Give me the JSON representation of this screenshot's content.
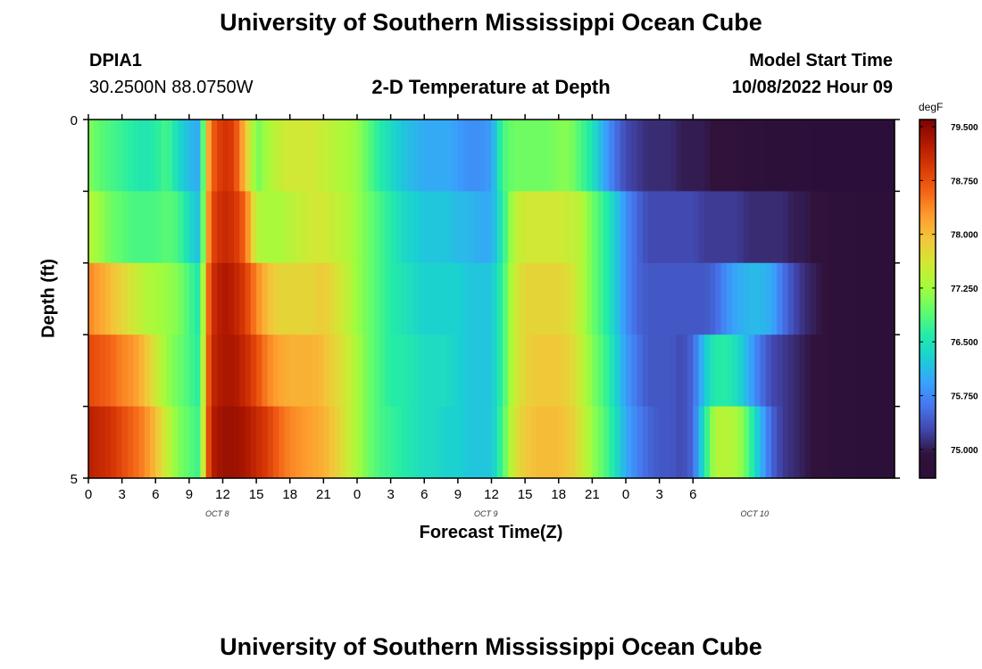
{
  "header": {
    "title": "University of Southern Mississippi Ocean Cube",
    "station_id": "DPIA1",
    "coordinates": "30.2500N  88.0750W",
    "plot_title": "2-D Temperature at Depth",
    "model_start_label": "Model Start Time",
    "model_start_value": "10/08/2022 Hour 09"
  },
  "footer": {
    "title": "University of Southern Mississippi Ocean Cube"
  },
  "chart_data": {
    "type": "heatmap",
    "title": "2-D Temperature at Depth",
    "xlabel": "Forecast Time(Z)",
    "ylabel": "Depth (ft)",
    "x_hours": [
      0,
      72
    ],
    "x_tick_step_hours": 3,
    "x_tick_labels": [
      "0",
      "3",
      "6",
      "9",
      "12",
      "15",
      "18",
      "21",
      "0",
      "3",
      "6",
      "9",
      "12",
      "15",
      "18",
      "21",
      "0",
      "3",
      "6"
    ],
    "date_labels": [
      {
        "label": "OCT 8",
        "hour": 11.5
      },
      {
        "label": "OCT 9",
        "hour": 35.5
      },
      {
        "label": "OCT 10",
        "hour": 59.5
      }
    ],
    "y_range": [
      0,
      5
    ],
    "y_tick_labels": [
      "0",
      "5"
    ],
    "depth_rows": 5,
    "colorbar": {
      "unit": "degF",
      "min": 74.6,
      "max": 79.6,
      "ticks": [
        "79.500",
        "78.750",
        "78.000",
        "77.250",
        "76.500",
        "75.750",
        "75.000"
      ],
      "tick_values": [
        79.5,
        78.75,
        78.0,
        77.25,
        76.5,
        75.75,
        75.0
      ]
    },
    "colors": {
      "stops": [
        "#2b0f3a",
        "#30123b",
        "#4145ab",
        "#4675ed",
        "#39a2fc",
        "#1bcfd4",
        "#24eca6",
        "#61fc6c",
        "#a4fc3b",
        "#d1e834",
        "#f3c63a",
        "#fe9b2d",
        "#f36315",
        "#d93806",
        "#b11901",
        "#7a0403"
      ]
    },
    "key_times": [
      0,
      1,
      2,
      3,
      4,
      5,
      6,
      7,
      8,
      9,
      10,
      10.5,
      11,
      12,
      13,
      14,
      15,
      16,
      17,
      18,
      19,
      20,
      21,
      22,
      23,
      24,
      25,
      26,
      27,
      28,
      29,
      30,
      31,
      32,
      33,
      34,
      35,
      36,
      37,
      38,
      39,
      40,
      41,
      42,
      43,
      44,
      45,
      46,
      47,
      48,
      49,
      50,
      51,
      52,
      53,
      54,
      55,
      56,
      57,
      58,
      59,
      60,
      61,
      62,
      63,
      64,
      65,
      66,
      67,
      68,
      69,
      70,
      71,
      72
    ],
    "series": [
      {
        "name": "row1",
        "values": [
          77.1,
          76.9,
          76.8,
          76.7,
          76.6,
          76.5,
          76.6,
          76.8,
          76.4,
          76.1,
          76.0,
          77.8,
          78.6,
          79.0,
          78.9,
          78.0,
          77.0,
          77.3,
          77.5,
          77.6,
          77.6,
          77.6,
          77.5,
          77.4,
          77.3,
          77.2,
          76.9,
          76.6,
          76.4,
          76.2,
          76.1,
          76.0,
          76.0,
          76.0,
          75.9,
          75.8,
          75.8,
          75.9,
          76.8,
          77.0,
          77.0,
          77.0,
          77.0,
          77.1,
          77.1,
          76.8,
          76.5,
          76.0,
          75.6,
          75.3,
          75.2,
          75.1,
          75.1,
          75.1,
          75.0,
          75.0,
          75.0,
          74.9,
          74.9,
          74.9,
          74.8,
          74.8,
          74.7,
          74.7,
          74.7,
          74.7,
          74.6,
          74.6,
          74.6,
          74.6,
          74.6,
          74.6,
          74.6,
          74.6
        ]
      },
      {
        "name": "row2",
        "values": [
          77.4,
          77.2,
          77.0,
          76.9,
          76.8,
          76.8,
          76.8,
          76.9,
          76.8,
          76.4,
          76.1,
          77.9,
          78.8,
          79.1,
          79.0,
          78.6,
          77.4,
          77.3,
          77.3,
          77.4,
          77.5,
          77.6,
          77.6,
          77.5,
          77.4,
          77.2,
          77.0,
          76.8,
          76.6,
          76.4,
          76.3,
          76.2,
          76.2,
          76.2,
          76.1,
          76.1,
          76.0,
          76.0,
          76.6,
          77.4,
          77.6,
          77.6,
          77.6,
          77.6,
          77.5,
          77.4,
          77.0,
          76.7,
          76.3,
          75.8,
          75.5,
          75.3,
          75.3,
          75.3,
          75.3,
          75.3,
          75.2,
          75.2,
          75.2,
          75.2,
          75.1,
          75.1,
          75.1,
          75.1,
          75.0,
          75.0,
          74.9,
          74.9,
          74.8,
          74.8,
          74.7,
          74.7,
          74.7,
          74.7
        ]
      },
      {
        "name": "row3",
        "values": [
          78.4,
          78.2,
          78.0,
          77.8,
          77.6,
          77.4,
          77.3,
          77.2,
          77.1,
          76.8,
          76.5,
          78.2,
          79.0,
          79.3,
          79.2,
          78.9,
          78.4,
          78.0,
          77.8,
          77.8,
          77.8,
          77.8,
          77.9,
          77.7,
          77.5,
          77.2,
          77.0,
          76.8,
          76.6,
          76.5,
          76.4,
          76.3,
          76.3,
          76.3,
          76.3,
          76.2,
          76.2,
          76.2,
          76.7,
          77.5,
          77.8,
          77.8,
          77.8,
          77.8,
          77.7,
          77.4,
          77.0,
          76.7,
          76.3,
          75.8,
          75.5,
          75.4,
          75.4,
          75.4,
          75.4,
          75.4,
          75.4,
          75.5,
          75.8,
          76.0,
          76.1,
          76.1,
          76.0,
          75.6,
          75.3,
          75.1,
          75.0,
          74.9,
          74.8,
          74.8,
          74.7,
          74.7,
          74.7,
          74.7
        ]
      },
      {
        "name": "row4",
        "values": [
          78.8,
          78.7,
          78.6,
          78.4,
          78.3,
          78.0,
          77.6,
          77.2,
          77.0,
          76.8,
          76.6,
          78.3,
          79.1,
          79.3,
          79.3,
          79.1,
          78.8,
          78.4,
          78.2,
          78.1,
          78.1,
          78.1,
          78.0,
          77.8,
          77.6,
          77.3,
          77.0,
          76.8,
          76.6,
          76.6,
          76.5,
          76.4,
          76.4,
          76.4,
          76.3,
          76.2,
          76.2,
          76.2,
          76.7,
          77.5,
          77.8,
          77.9,
          77.9,
          77.9,
          77.8,
          77.5,
          77.1,
          76.8,
          76.4,
          75.9,
          75.6,
          75.4,
          75.4,
          75.4,
          75.3,
          75.5,
          76.2,
          76.6,
          76.6,
          76.4,
          76.0,
          75.6,
          75.3,
          75.2,
          75.1,
          75.0,
          74.9,
          74.9,
          74.8,
          74.8,
          74.7,
          74.7,
          74.7,
          74.7
        ]
      },
      {
        "name": "row5",
        "values": [
          79.2,
          79.1,
          79.0,
          78.8,
          78.6,
          78.4,
          78.0,
          77.5,
          77.1,
          76.9,
          76.7,
          78.4,
          79.2,
          79.4,
          79.4,
          79.3,
          79.1,
          78.9,
          78.6,
          78.4,
          78.3,
          78.2,
          78.1,
          77.9,
          77.6,
          77.3,
          77.0,
          76.8,
          76.7,
          76.6,
          76.5,
          76.4,
          76.4,
          76.3,
          76.3,
          76.2,
          76.2,
          76.2,
          76.8,
          77.6,
          77.9,
          78.0,
          78.0,
          78.0,
          77.9,
          77.6,
          77.2,
          76.9,
          76.5,
          76.0,
          75.7,
          75.5,
          75.4,
          75.4,
          75.3,
          75.5,
          76.5,
          77.4,
          77.4,
          77.3,
          76.8,
          76.1,
          75.5,
          75.2,
          75.1,
          75.0,
          74.9,
          74.9,
          74.8,
          74.8,
          74.7,
          74.7,
          74.7,
          74.7
        ]
      }
    ]
  }
}
